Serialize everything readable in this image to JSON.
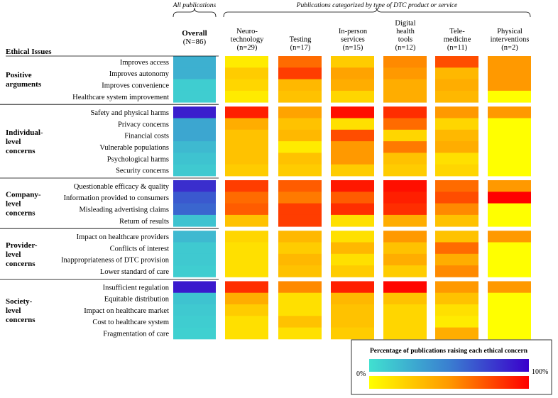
{
  "chart_data": {
    "type": "heatmap",
    "title": "Percentage of publications raising each ethical concern",
    "row_header": "Ethical Issues",
    "overall_group_label": "All publications",
    "dtc_group_label": "Publications categorized by type of DTC product or service",
    "overall_column": {
      "lines": [
        "Overall",
        "(N=86)"
      ]
    },
    "dtc_columns": [
      {
        "lines": [
          "Neuro-",
          "technology",
          "(n=29)"
        ]
      },
      {
        "lines": [
          "Testing",
          "(n=17)"
        ]
      },
      {
        "lines": [
          "In-person",
          "services",
          "(n=15)"
        ]
      },
      {
        "lines": [
          "Digital",
          "health",
          "tools",
          "(n=12)"
        ]
      },
      {
        "lines": [
          "Tele-",
          "medicine",
          "(n=11)"
        ]
      },
      {
        "lines": [
          "Physical",
          "interventions",
          "(n=2)"
        ]
      }
    ],
    "categories": [
      {
        "lines": [
          "Positive",
          "arguments"
        ],
        "issues": [
          "Improves access",
          "Improves autonomy",
          "Improves convenience",
          "Healthcare system improvement"
        ]
      },
      {
        "lines": [
          "Individual-",
          "level",
          "concerns"
        ],
        "issues": [
          "Safety and physical harms",
          "Privacy concerns",
          "Financial costs",
          "Vulnerable populations",
          "Psychological harms",
          "Security concerns"
        ]
      },
      {
        "lines": [
          "Company-",
          "level",
          "concerns"
        ],
        "issues": [
          "Questionable efficacy & quality",
          "Information provided to consumers",
          "Misleading advertising claims",
          "Return of results"
        ]
      },
      {
        "lines": [
          "Provider-",
          "level",
          "concerns"
        ],
        "issues": [
          "Impact on healthcare providers",
          "Conflicts of interest",
          "Inappropriateness of DTC provision",
          "Lower standard of care"
        ]
      },
      {
        "lines": [
          "Society-",
          "level",
          "concerns"
        ],
        "issues": [
          "Insufficient regulation",
          "Equitable distribution",
          "Impact on healthcare market",
          "Cost to healthcare system",
          "Fragmentation of care"
        ]
      }
    ],
    "overall_values": [
      25,
      25,
      10,
      10,
      88,
      30,
      30,
      20,
      15,
      12,
      82,
      65,
      60,
      15,
      20,
      12,
      12,
      10,
      90,
      15,
      12,
      10,
      8
    ],
    "dtc_values": [
      [
        10,
        65,
        25,
        55,
        75,
        50
      ],
      [
        25,
        80,
        45,
        50,
        35,
        50
      ],
      [
        20,
        35,
        40,
        40,
        40,
        50
      ],
      [
        10,
        30,
        20,
        40,
        35,
        0
      ],
      [
        90,
        45,
        95,
        85,
        50,
        50
      ],
      [
        40,
        30,
        15,
        65,
        20,
        0
      ],
      [
        30,
        35,
        75,
        20,
        35,
        0
      ],
      [
        30,
        10,
        50,
        60,
        40,
        0
      ],
      [
        30,
        30,
        50,
        30,
        15,
        0
      ],
      [
        25,
        25,
        25,
        25,
        20,
        0
      ],
      [
        80,
        70,
        92,
        95,
        65,
        50
      ],
      [
        65,
        60,
        70,
        90,
        75,
        100
      ],
      [
        70,
        80,
        85,
        85,
        55,
        0
      ],
      [
        30,
        80,
        15,
        40,
        30,
        0
      ],
      [
        20,
        35,
        15,
        50,
        30,
        50
      ],
      [
        15,
        25,
        35,
        30,
        65,
        0
      ],
      [
        15,
        35,
        15,
        40,
        40,
        0
      ],
      [
        15,
        30,
        25,
        25,
        55,
        0
      ],
      [
        85,
        55,
        90,
        98,
        50,
        50
      ],
      [
        40,
        15,
        35,
        30,
        30,
        0
      ],
      [
        25,
        15,
        30,
        20,
        15,
        0
      ],
      [
        15,
        30,
        30,
        20,
        10,
        0
      ],
      [
        15,
        15,
        25,
        20,
        40,
        0
      ]
    ],
    "units": "percent",
    "value_range": [
      0,
      100
    ],
    "legend": {
      "min_label": "0%",
      "max_label": "100%",
      "overall_scale": [
        "#40E0D0",
        "#3A7FD0",
        "#3A00CC"
      ],
      "dtc_scale": [
        "#FFFF00",
        "#FF9900",
        "#FF0000"
      ]
    }
  }
}
